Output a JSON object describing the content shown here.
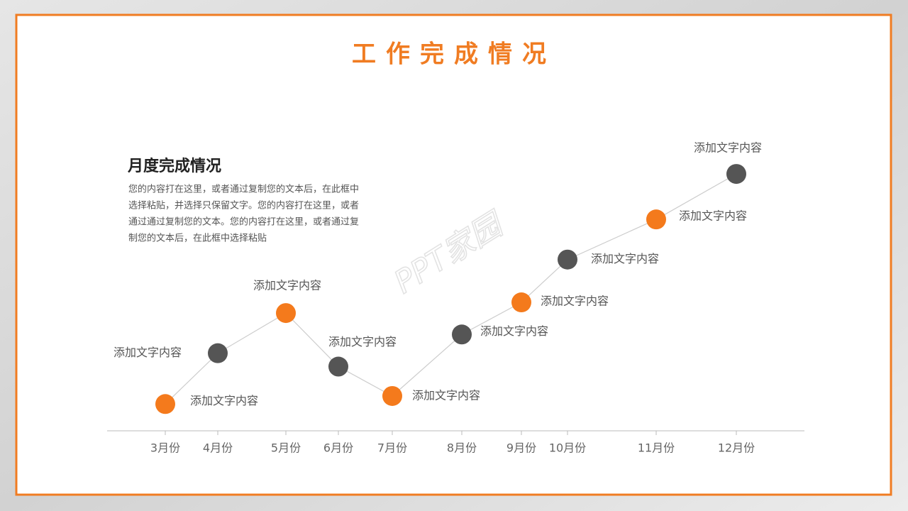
{
  "page_title": "工作完成情况",
  "text_box": {
    "title": "月度完成情况",
    "lines": [
      "您的内容打在这里，或者通过复制您的文本后，在此框中",
      "选择粘贴，并选择只保留文字。您的内容打在这里，或者",
      "通过通过复制您的文本。您的内容打在这里，或者通过复",
      "制您的文本后，在此框中选择粘贴"
    ]
  },
  "watermark": "PPT家园",
  "chart_data": {
    "type": "line",
    "categories": [
      "3月份",
      "4月份",
      "5月份",
      "6月份",
      "7月份",
      "8月份",
      "9月份",
      "10月份",
      "11月份",
      "12月份"
    ],
    "values": [
      1.0,
      2.9,
      4.4,
      2.4,
      1.3,
      3.6,
      4.8,
      6.4,
      7.9,
      9.6
    ],
    "point_labels": [
      "添加文字内容",
      "添加文字内容",
      "添加文字内容",
      "添加文字内容",
      "添加文字内容",
      "添加文字内容",
      "添加文字内容",
      "添加文字内容",
      "添加文字内容",
      "添加文字内容"
    ],
    "point_colors": [
      "#f47a1c",
      "#555555",
      "#f47a1c",
      "#555555",
      "#f47a1c",
      "#555555",
      "#f47a1c",
      "#555555",
      "#f47a1c",
      "#555555"
    ],
    "line_color": "#cccccc",
    "ylim": [
      0,
      10
    ]
  }
}
